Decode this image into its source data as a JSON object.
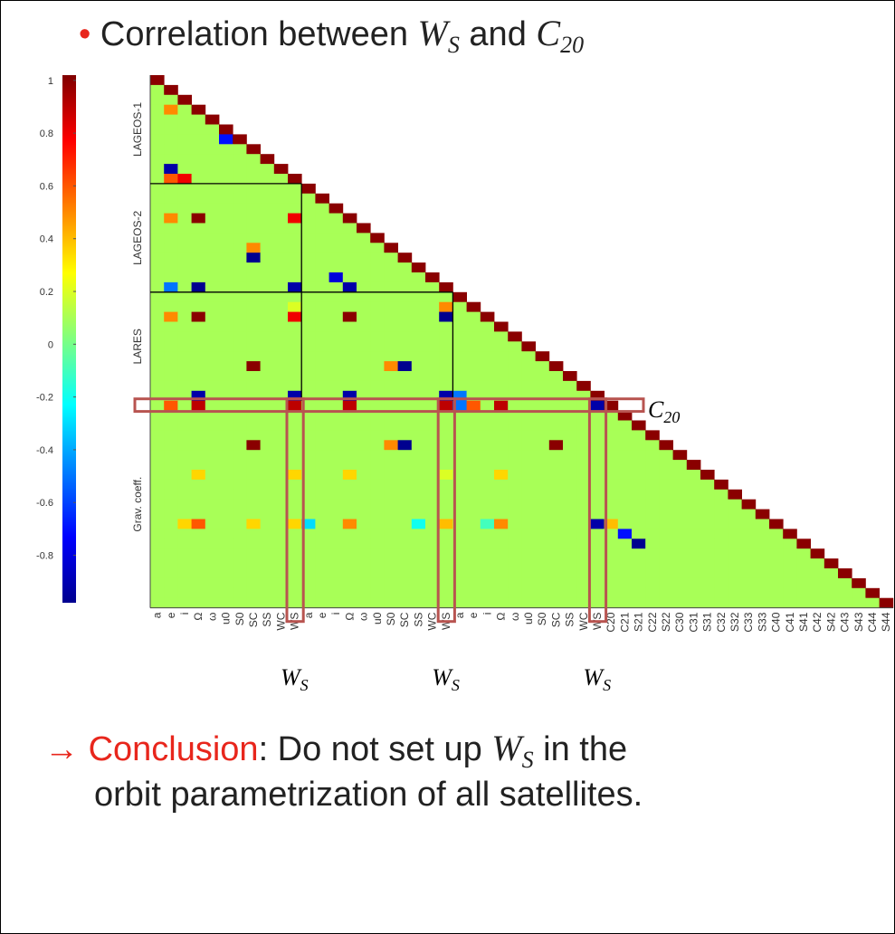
{
  "title": {
    "bullet": "•",
    "prefix": "Correlation between",
    "var1": "W",
    "var1_sub": "S",
    "mid": "and",
    "var2": "C",
    "var2_sub": "20"
  },
  "chart_data": {
    "type": "heatmap",
    "colormap": "jet",
    "row_groups": [
      "LAGEOS-1",
      "LAGEOS-2",
      "LARES",
      "Grav. coeff."
    ],
    "categories": [
      "a",
      "e",
      "i",
      "Ω",
      "ω",
      "u0",
      "S0",
      "SC",
      "SS",
      "WC",
      "WS",
      "a",
      "e",
      "i",
      "Ω",
      "ω",
      "u0",
      "S0",
      "SC",
      "SS",
      "WC",
      "WS",
      "a",
      "e",
      "i",
      "Ω",
      "ω",
      "u0",
      "S0",
      "SC",
      "SS",
      "WC",
      "WS",
      "C20",
      "C21",
      "S21",
      "C22",
      "S22",
      "C30",
      "C31",
      "S31",
      "C32",
      "S32",
      "C33",
      "S33",
      "C40",
      "C41",
      "S41",
      "C42",
      "S42",
      "C43",
      "S43",
      "C44",
      "S44"
    ],
    "clim": [
      -0.98,
      1.02
    ],
    "colorbar_ticks": [
      1,
      0.8,
      0.6,
      0.4,
      0.2,
      0,
      -0.2,
      -0.4,
      -0.6,
      -0.8
    ],
    "fill_value": 0.1,
    "diagonal": 1,
    "cells": [
      [
        3,
        1,
        0.5
      ],
      [
        6,
        5,
        -0.7
      ],
      [
        9,
        1,
        -0.9
      ],
      [
        10,
        1,
        0.6
      ],
      [
        10,
        2,
        0.8
      ],
      [
        14,
        1,
        0.5
      ],
      [
        14,
        3,
        1
      ],
      [
        14,
        10,
        0.8
      ],
      [
        17,
        7,
        0.5
      ],
      [
        18,
        7,
        -0.95
      ],
      [
        20,
        13,
        -0.8
      ],
      [
        21,
        1,
        -0.5
      ],
      [
        21,
        3,
        -0.95
      ],
      [
        21,
        10,
        -0.9
      ],
      [
        21,
        14,
        -0.9
      ],
      [
        23,
        10,
        0.2
      ],
      [
        23,
        21,
        0.5
      ],
      [
        24,
        1,
        0.5
      ],
      [
        24,
        3,
        1
      ],
      [
        24,
        10,
        0.8
      ],
      [
        24,
        14,
        1
      ],
      [
        24,
        21,
        -0.95
      ],
      [
        29,
        7,
        1
      ],
      [
        29,
        17,
        0.5
      ],
      [
        29,
        18,
        -0.95
      ],
      [
        32,
        3,
        -0.9
      ],
      [
        32,
        10,
        -0.9
      ],
      [
        32,
        14,
        -0.9
      ],
      [
        32,
        21,
        -0.9
      ],
      [
        32,
        22,
        -0.5
      ],
      [
        33,
        1,
        0.6
      ],
      [
        33,
        3,
        0.9
      ],
      [
        33,
        10,
        0.9
      ],
      [
        33,
        14,
        0.9
      ],
      [
        33,
        21,
        0.9
      ],
      [
        33,
        22,
        -0.5
      ],
      [
        33,
        23,
        0.6
      ],
      [
        33,
        25,
        0.9
      ],
      [
        33,
        32,
        -0.9
      ],
      [
        37,
        7,
        1
      ],
      [
        37,
        17,
        0.5
      ],
      [
        37,
        18,
        -0.95
      ],
      [
        37,
        29,
        1
      ],
      [
        40,
        3,
        0.35
      ],
      [
        40,
        10,
        0.35
      ],
      [
        40,
        14,
        0.35
      ],
      [
        40,
        21,
        0.2
      ],
      [
        40,
        25,
        0.35
      ],
      [
        45,
        2,
        0.35
      ],
      [
        45,
        3,
        0.6
      ],
      [
        45,
        7,
        0.35
      ],
      [
        45,
        10,
        0.35
      ],
      [
        45,
        11,
        -0.3
      ],
      [
        45,
        14,
        0.5
      ],
      [
        45,
        19,
        -0.2
      ],
      [
        45,
        21,
        0.4
      ],
      [
        45,
        24,
        -0.1
      ],
      [
        45,
        25,
        0.5
      ],
      [
        45,
        32,
        -0.9
      ],
      [
        45,
        33,
        0.4
      ],
      [
        46,
        34,
        -0.7
      ],
      [
        47,
        35,
        -0.95
      ]
    ],
    "row_marker": {
      "base": "C",
      "sub": "20"
    },
    "column_markers": [
      {
        "base": "W",
        "sub": "S"
      },
      {
        "base": "W",
        "sub": "S"
      },
      {
        "base": "W",
        "sub": "S"
      }
    ]
  },
  "conclusion": {
    "arrow": "→",
    "keyword": "Conclusion",
    "text1": ": Do not set up",
    "var": "W",
    "var_sub": "S",
    "text2": "in the",
    "line2": "orbit parametrization of all satellites."
  }
}
